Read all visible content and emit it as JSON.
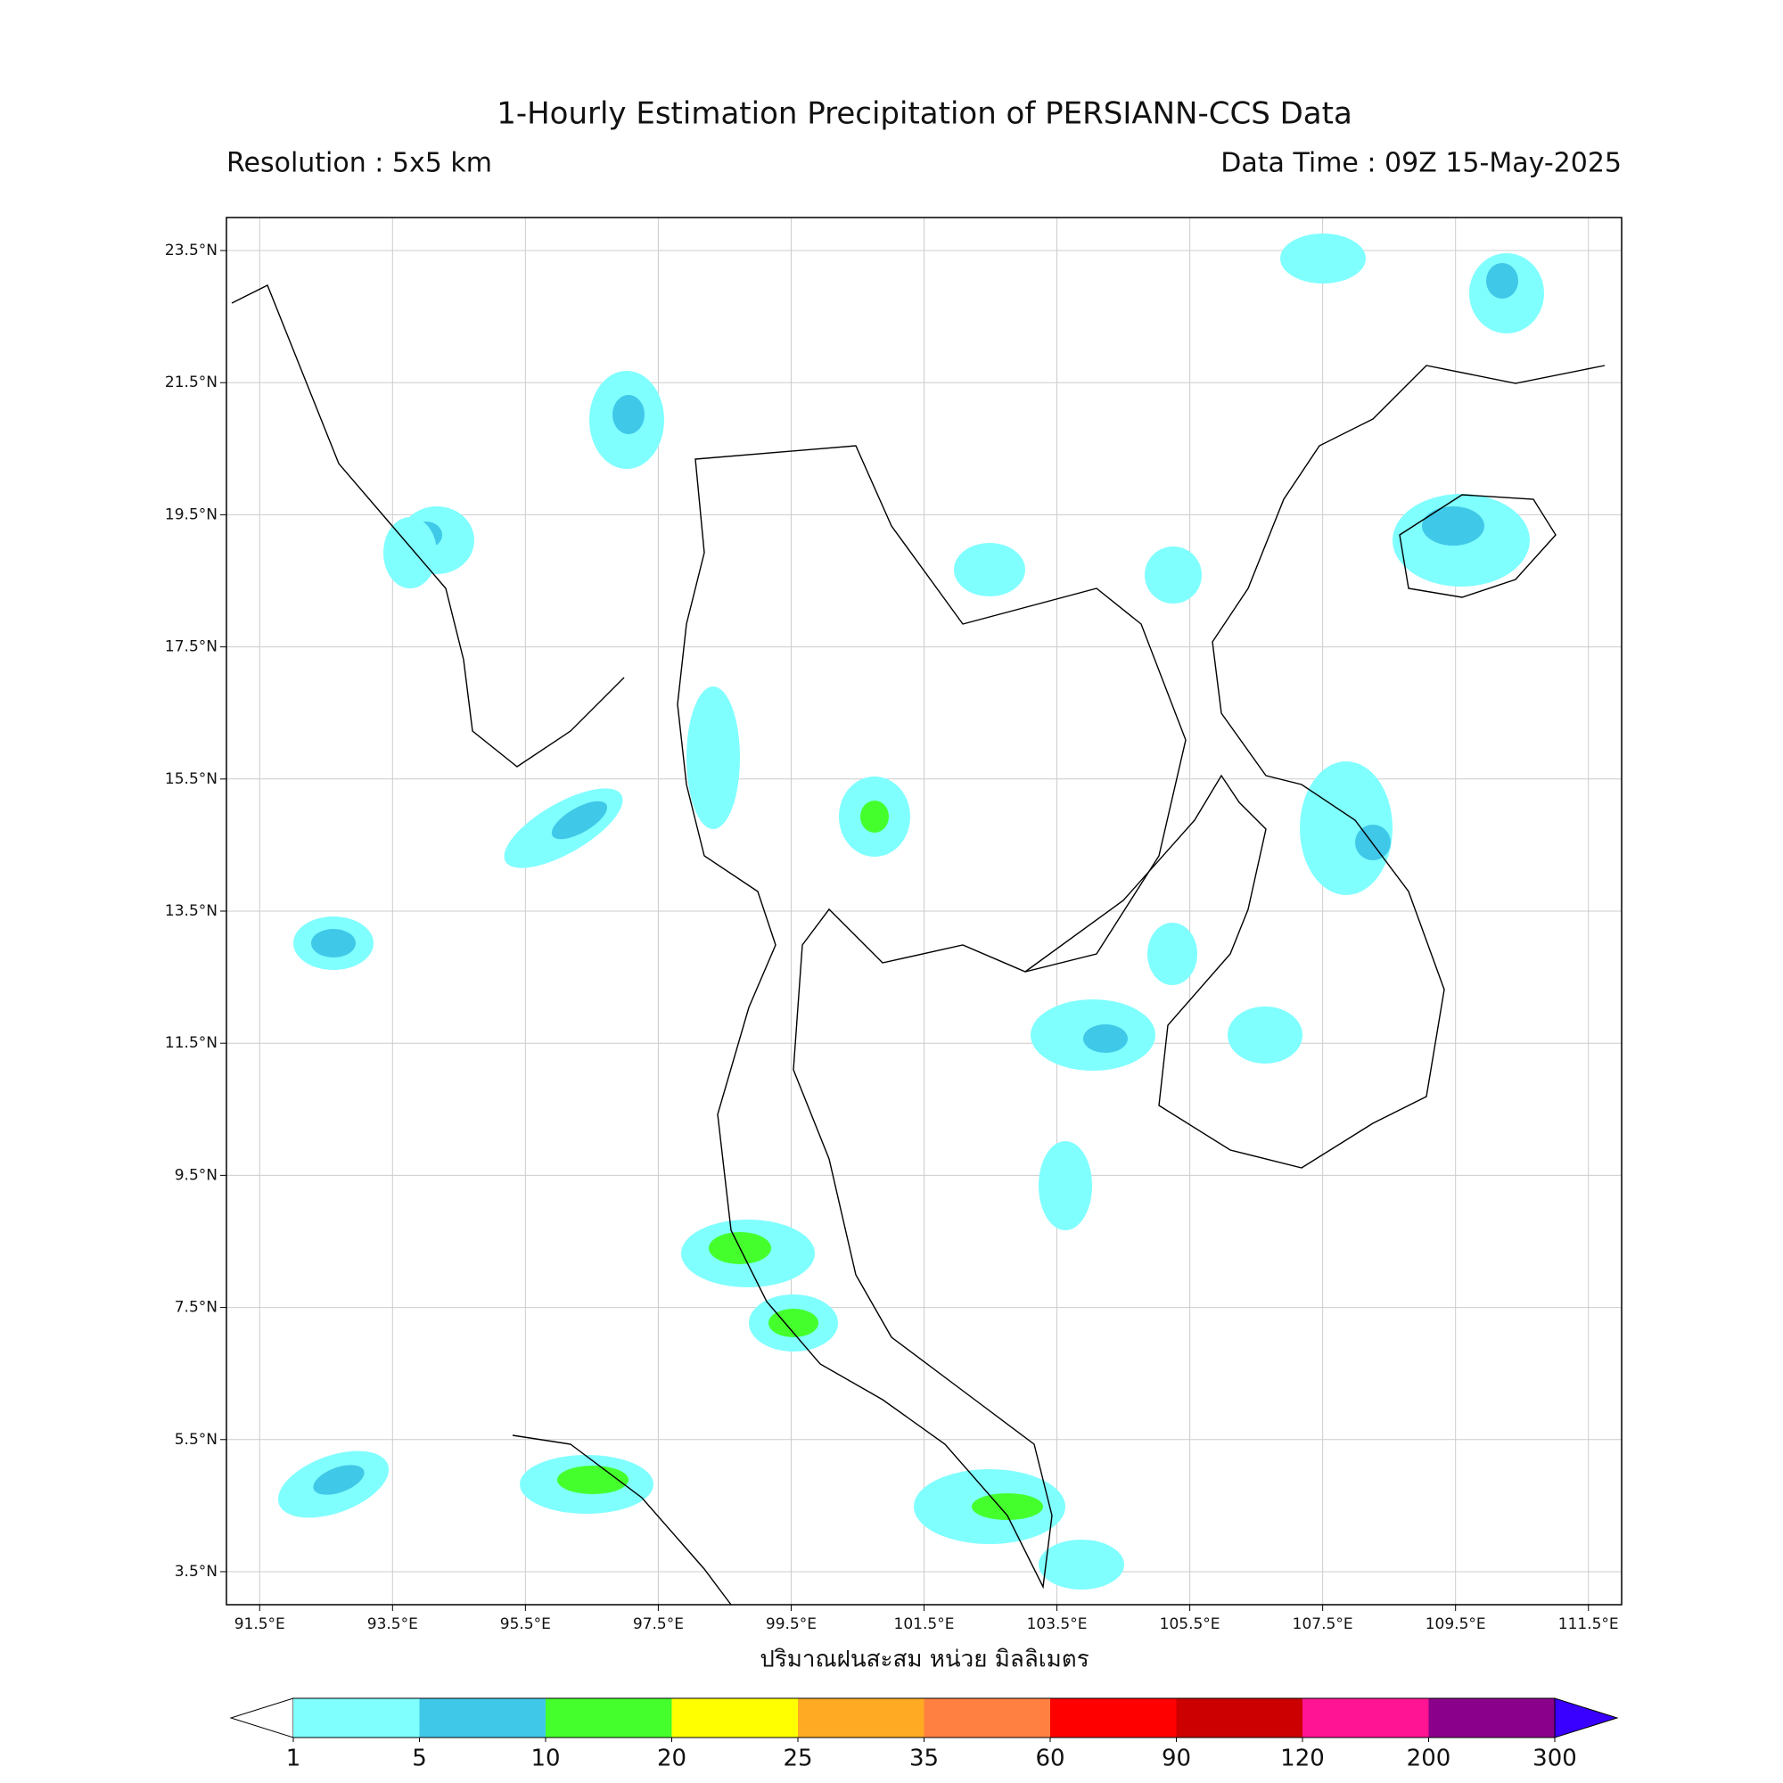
{
  "title": "1-Hourly Estimation Precipitation of PERSIANN-CCS Data",
  "resolution": "Resolution : 5x5 km",
  "data_time": "Data Time : 09Z 15-May-2025",
  "map": {
    "lon_range": [
      91,
      112
    ],
    "lat_range": [
      3,
      24
    ],
    "lon_ticks": [
      {
        "value": 91.5,
        "label": "91.5°E"
      },
      {
        "value": 93.5,
        "label": "93.5°E"
      },
      {
        "value": 95.5,
        "label": "95.5°E"
      },
      {
        "value": 97.5,
        "label": "97.5°E"
      },
      {
        "value": 99.5,
        "label": "99.5°E"
      },
      {
        "value": 101.5,
        "label": "101.5°E"
      },
      {
        "value": 103.5,
        "label": "103.5°E"
      },
      {
        "value": 105.5,
        "label": "105.5°E"
      },
      {
        "value": 107.5,
        "label": "107.5°E"
      },
      {
        "value": 109.5,
        "label": "109.5°E"
      },
      {
        "value": 111.5,
        "label": "111.5°E"
      }
    ],
    "lat_ticks": [
      {
        "value": 23.5,
        "label": "23.5°N"
      },
      {
        "value": 21.5,
        "label": "21.5°N"
      },
      {
        "value": 19.5,
        "label": "19.5°N"
      },
      {
        "value": 17.5,
        "label": "17.5°N"
      },
      {
        "value": 15.5,
        "label": "15.5°N"
      },
      {
        "value": 13.5,
        "label": "13.5°N"
      },
      {
        "value": 11.5,
        "label": "11.5°N"
      },
      {
        "value": 9.5,
        "label": "9.5°N"
      },
      {
        "value": 7.5,
        "label": "7.5°N"
      },
      {
        "value": 5.5,
        "label": "5.5°N"
      },
      {
        "value": 3.5,
        "label": "3.5°N"
      }
    ],
    "grid": true
  },
  "colorbar": {
    "label": "ปริมาณฝนสะสม หน่วย มิลลิเมตร",
    "levels": [
      1,
      5,
      10,
      20,
      25,
      35,
      60,
      90,
      120,
      200,
      300
    ],
    "colors": [
      "#80ffff",
      "#40c8e8",
      "#44ff2c",
      "#ffff00",
      "#ffaa22",
      "#ff8040",
      "#ff0000",
      "#cc0000",
      "#ff1493",
      "#8b008b"
    ],
    "under_color": "#ffffff",
    "over_color": "#3a00ff"
  }
}
